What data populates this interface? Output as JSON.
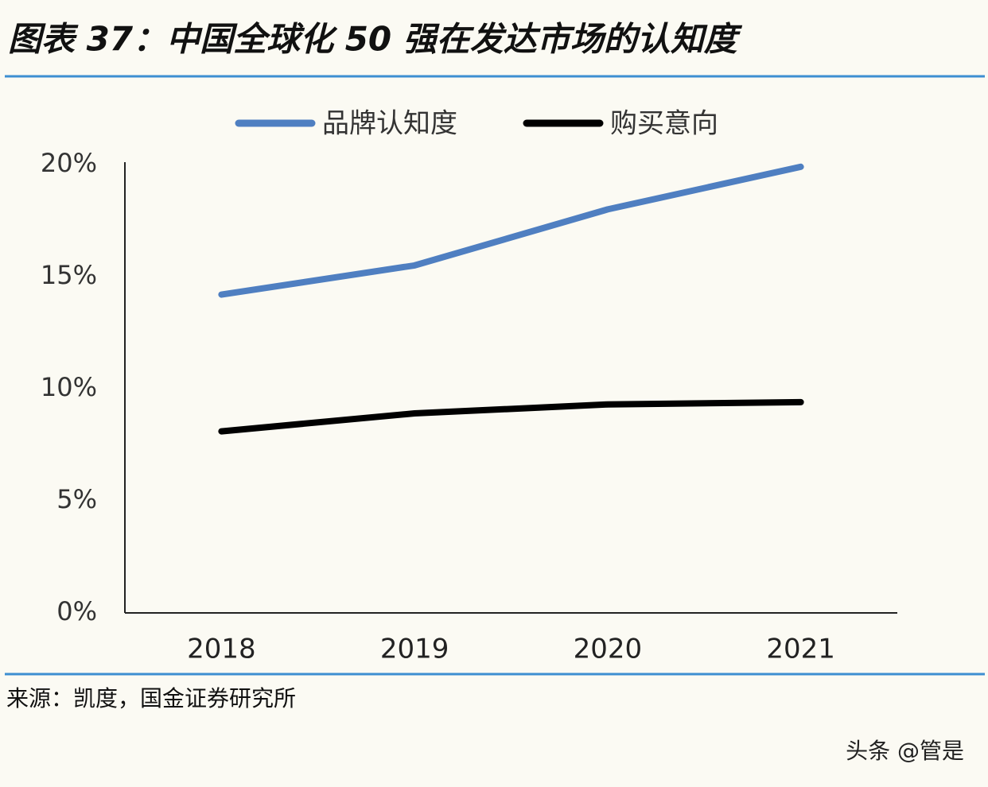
{
  "chart_data": {
    "type": "line",
    "title": "图表 37：中国全球化 50 强在发达市场的认知度",
    "source": "来源：凯度，国金证券研究所",
    "watermark": "头条 @管是",
    "categories": [
      "2018",
      "2019",
      "2020",
      "2021"
    ],
    "series": [
      {
        "name": "品牌认知度",
        "color": "#4f7fc1",
        "values": [
          14.2,
          15.5,
          18.0,
          19.9
        ]
      },
      {
        "name": "购买意向",
        "color": "#000000",
        "values": [
          8.1,
          8.9,
          9.3,
          9.4
        ]
      }
    ],
    "ylim": [
      0,
      20
    ],
    "yticks": [
      {
        "value": 0,
        "label": "0%"
      },
      {
        "value": 5,
        "label": "5%"
      },
      {
        "value": 10,
        "label": "10%"
      },
      {
        "value": 15,
        "label": "15%"
      },
      {
        "value": 20,
        "label": "20%"
      }
    ],
    "legend": "top"
  }
}
